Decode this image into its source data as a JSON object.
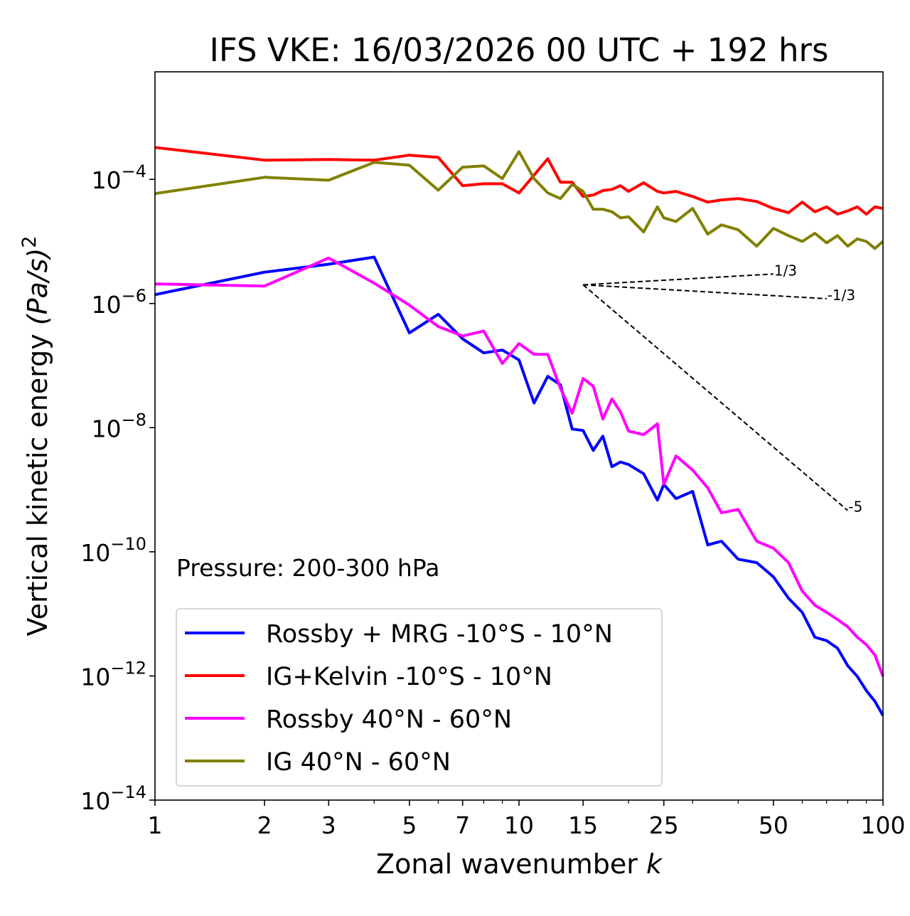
{
  "chart_data": {
    "type": "line",
    "title": "IFS VKE: 16/03/2026 00 UTC + 192 hrs",
    "xlabel": "Zonal wavenumber k",
    "xlabel_main": "Zonal wavenumber ",
    "xlabel_var": "k",
    "ylabel": "Vertical kinetic energy (Pa/s)^2",
    "ylabel_main": "Vertical kinetic energy ",
    "ylabel_var": "(Pa/s)",
    "ylabel_exp": "2",
    "xscale": "log",
    "yscale": "log",
    "xlim": [
      1,
      100
    ],
    "ylim": [
      1e-14,
      0.0054
    ],
    "xticks": [
      1,
      2,
      3,
      5,
      7,
      10,
      15,
      25,
      50,
      100
    ],
    "xtick_labels": [
      "1",
      "2",
      "3",
      "5",
      "7",
      "10",
      "15",
      "25",
      "50",
      "100"
    ],
    "xminor": [
      4,
      6,
      8,
      9,
      20,
      30,
      40,
      60,
      70,
      80,
      90
    ],
    "yticks": [
      0.0001,
      1e-06,
      1e-08,
      1e-10,
      1e-12,
      1e-14
    ],
    "ytick_exponents": [
      "−4",
      "−6",
      "−8",
      "−10",
      "−12",
      "−14"
    ],
    "ytick_base": "10",
    "annotation": "Pressure: 200-300 hPa",
    "legend_position": "lower-left",
    "x": [
      1,
      2,
      3,
      4,
      5,
      6,
      7,
      8,
      9,
      10,
      11,
      12,
      13,
      14,
      15,
      16,
      17,
      18,
      19,
      20,
      22,
      24,
      25,
      27,
      30,
      33,
      36,
      40,
      45,
      50,
      55,
      60,
      65,
      70,
      75,
      80,
      85,
      90,
      95,
      100
    ],
    "series": [
      {
        "name": "Rossby + MRG -10°S - 10°N",
        "color": "#0000ff",
        "values": [
          1.39e-06,
          3.2e-06,
          4.3e-06,
          5.6e-06,
          3.36e-07,
          6.7e-07,
          2.7e-07,
          1.6e-07,
          1.78e-07,
          1.23e-07,
          2.5e-08,
          6.7e-08,
          4.9e-08,
          9.5e-09,
          9e-09,
          4.3e-09,
          7.3e-09,
          2.35e-09,
          2.8e-09,
          2.55e-09,
          1.81e-09,
          6.8e-10,
          1.22e-09,
          7.2e-10,
          9.4e-10,
          1.29e-10,
          1.48e-10,
          7.6e-11,
          6.7e-11,
          3.95e-11,
          1.79e-11,
          1.06e-11,
          4.2e-12,
          3.7e-12,
          2.8e-12,
          1.46e-12,
          9.8e-13,
          5.8e-13,
          3.9e-13,
          2.3e-13
        ]
      },
      {
        "name": "IG+Kelvin -10°S - 10°N",
        "color": "#ff0000",
        "values": [
          0.000327,
          0.000204,
          0.000209,
          0.000204,
          0.000245,
          0.000226,
          7.9e-05,
          8.5e-05,
          8.5e-05,
          6.05e-05,
          0.000117,
          0.000215,
          9e-05,
          9e-05,
          5.3e-05,
          5.6e-05,
          6.6e-05,
          6.9e-05,
          7.9e-05,
          6.4e-05,
          8.8e-05,
          6.4e-05,
          6.05e-05,
          6.4e-05,
          5.3e-05,
          4.3e-05,
          4.66e-05,
          4.9e-05,
          4.4e-05,
          3.4e-05,
          2.9e-05,
          4.3e-05,
          3e-05,
          3.6e-05,
          2.75e-05,
          3.1e-05,
          3.6e-05,
          2.75e-05,
          3.6e-05,
          3.4e-05
        ]
      },
      {
        "name": "Rossby 40°N - 60°N",
        "color": "#ff00ff",
        "values": [
          2.07e-06,
          1.91e-06,
          5.4e-06,
          2.13e-06,
          9.4e-07,
          4.26e-07,
          3e-07,
          3.6e-07,
          1.08e-07,
          2.26e-07,
          1.52e-07,
          1.52e-07,
          4.3e-08,
          1.7e-08,
          6.2e-08,
          4.65e-08,
          1.38e-08,
          2.9e-08,
          1.8e-08,
          8.8e-09,
          7.7e-09,
          1.15e-08,
          1.22e-09,
          3.5e-09,
          2.07e-09,
          1.07e-09,
          4.25e-10,
          4.8e-10,
          1.48e-10,
          1.14e-10,
          6.7e-11,
          2.33e-11,
          1.38e-11,
          1.06e-11,
          8.1e-12,
          6.2e-12,
          4.2e-12,
          3.2e-12,
          2.17e-12,
          9.8e-13
        ]
      },
      {
        "name": "IG 40°N - 60°N",
        "color": "#808000",
        "values": [
          5.9e-05,
          0.000108,
          9.7e-05,
          0.000188,
          0.000169,
          6.7e-05,
          0.000157,
          0.000165,
          0.000103,
          0.00028,
          0.000103,
          6.05e-05,
          4.9e-05,
          8.3e-05,
          6.4e-05,
          3.3e-05,
          3.3e-05,
          3e-05,
          2.4e-05,
          2.5e-05,
          1.42e-05,
          3.6e-05,
          2.4e-05,
          2.1e-05,
          3.4e-05,
          1.31e-05,
          1.85e-05,
          1.54e-05,
          8.4e-06,
          1.62e-05,
          1.24e-05,
          1e-05,
          1.35e-05,
          9.5e-06,
          1.24e-05,
          8.4e-06,
          1.1e-05,
          1e-05,
          7.7e-06,
          1e-05
        ]
      }
    ],
    "reference_lines": [
      {
        "label": "1/3",
        "slope": 0.3333,
        "k_start": 15,
        "k_end": 50,
        "y_start": 2e-06
      },
      {
        "label": "-1/3",
        "slope": -0.3333,
        "k_start": 15,
        "k_end": 70,
        "y_start": 2e-06
      },
      {
        "label": "-5",
        "slope": -5,
        "k_start": 15,
        "k_end": 80,
        "y_start": 2e-06
      }
    ]
  }
}
